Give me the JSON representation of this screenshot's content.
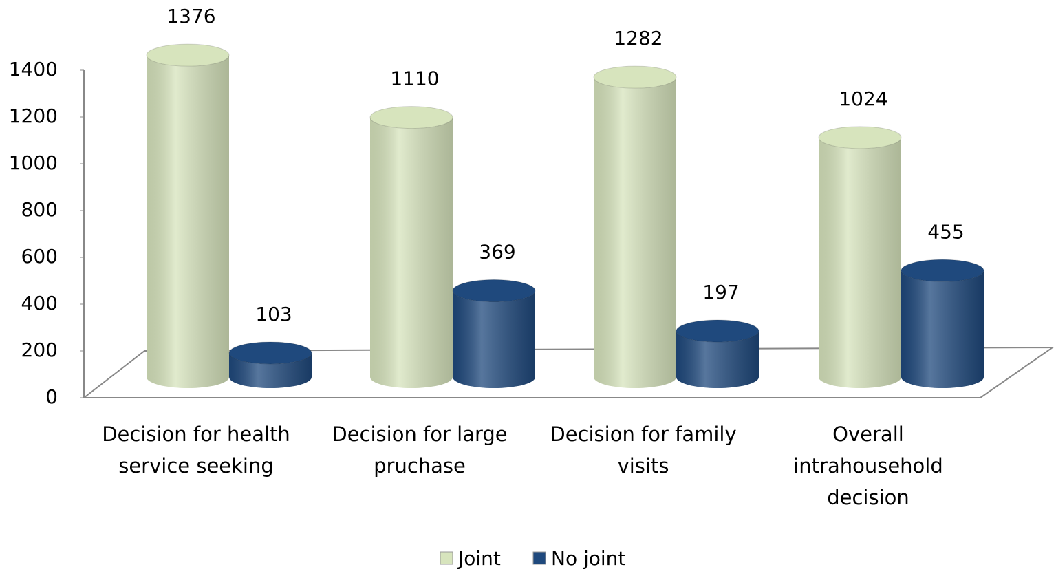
{
  "chart_data": {
    "type": "bar3d",
    "categories": [
      "Decision for health service seeking",
      "Decision for large pruchase",
      "Decision for family visits",
      "Overall intrahousehold decision"
    ],
    "series": [
      {
        "name": "Joint",
        "color": "#d7e4bd",
        "values": [
          1376,
          1110,
          1282,
          1024
        ]
      },
      {
        "name": "No joint",
        "color": "#1f497d",
        "values": [
          103,
          369,
          197,
          455
        ]
      }
    ],
    "ylim": [
      0,
      1400
    ],
    "yticks": [
      0,
      200,
      400,
      600,
      800,
      1000,
      1200,
      1400
    ],
    "legend": "bottom"
  }
}
